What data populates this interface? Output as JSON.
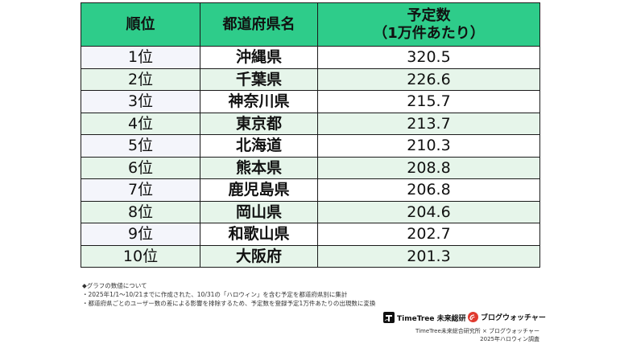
{
  "table": {
    "headers": {
      "rank": "順位",
      "prefecture": "都道府県名",
      "count_line1": "予定数",
      "count_line2": "（1万件あたり）"
    },
    "rows": [
      {
        "rank": "1位",
        "prefecture": "沖縄県",
        "count": "320.5"
      },
      {
        "rank": "2位",
        "prefecture": "千葉県",
        "count": "226.6"
      },
      {
        "rank": "3位",
        "prefecture": "神奈川県",
        "count": "215.7"
      },
      {
        "rank": "4位",
        "prefecture": "東京都",
        "count": "213.7"
      },
      {
        "rank": "5位",
        "prefecture": "北海道",
        "count": "210.3"
      },
      {
        "rank": "6位",
        "prefecture": "熊本県",
        "count": "208.8"
      },
      {
        "rank": "7位",
        "prefecture": "鹿児島県",
        "count": "206.8"
      },
      {
        "rank": "8位",
        "prefecture": "岡山県",
        "count": "204.6"
      },
      {
        "rank": "9位",
        "prefecture": "和歌山県",
        "count": "202.7"
      },
      {
        "rank": "10位",
        "prefecture": "大阪府",
        "count": "201.3"
      }
    ]
  },
  "notes": {
    "heading": "◆グラフの数値について",
    "line1": "・2025年1/1〜10/21までに作成された、10/31の「ハロウィン」を含む予定を都道府県別に集計",
    "line2": "・都道府県ごとのユーザー数の差による影響を排除するため、予定数を登録予定1万件あたりの出現数に変換"
  },
  "logos": {
    "timetree": "TimeTree 未来総研",
    "blogwatcher": "ブログウォッチャー"
  },
  "credit": {
    "line1": "TimeTree未来総合研究所 × ブログウォッチャー",
    "line2": "2025年ハロウィン調査"
  },
  "colors": {
    "header_bg": "#2ecc8a",
    "even_row_bg": "#e6f5ea",
    "rank_cell_bg": "#f4f5fb"
  }
}
